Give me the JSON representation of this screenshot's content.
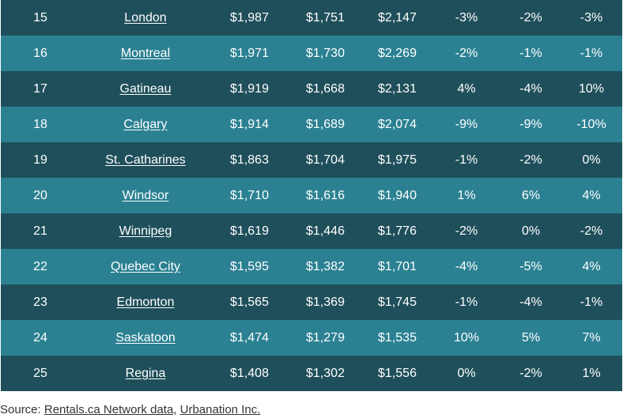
{
  "rows": [
    {
      "rank": "15",
      "city": "London",
      "v1": "$1,987",
      "v2": "$1,751",
      "v3": "$2,147",
      "p1": "-3%",
      "p2": "-2%",
      "p3": "-3%"
    },
    {
      "rank": "16",
      "city": "Montreal",
      "v1": "$1,971",
      "v2": "$1,730",
      "v3": "$2,269",
      "p1": "-2%",
      "p2": "-1%",
      "p3": "-1%"
    },
    {
      "rank": "17",
      "city": "Gatineau",
      "v1": "$1,919",
      "v2": "$1,668",
      "v3": "$2,131",
      "p1": "4%",
      "p2": "-4%",
      "p3": "10%"
    },
    {
      "rank": "18",
      "city": "Calgary",
      "v1": "$1,914",
      "v2": "$1,689",
      "v3": "$2,074",
      "p1": "-9%",
      "p2": "-9%",
      "p3": "-10%"
    },
    {
      "rank": "19",
      "city": "St. Catharines",
      "v1": "$1,863",
      "v2": "$1,704",
      "v3": "$1,975",
      "p1": "-1%",
      "p2": "-2%",
      "p3": "0%"
    },
    {
      "rank": "20",
      "city": "Windsor",
      "v1": "$1,710",
      "v2": "$1,616",
      "v3": "$1,940",
      "p1": "1%",
      "p2": "6%",
      "p3": "4%"
    },
    {
      "rank": "21",
      "city": "Winnipeg",
      "v1": "$1,619",
      "v2": "$1,446",
      "v3": "$1,776",
      "p1": "-2%",
      "p2": "0%",
      "p3": "-2%"
    },
    {
      "rank": "22",
      "city": "Quebec City",
      "v1": "$1,595",
      "v2": "$1,382",
      "v3": "$1,701",
      "p1": "-4%",
      "p2": "-5%",
      "p3": "4%"
    },
    {
      "rank": "23",
      "city": "Edmonton",
      "v1": "$1,565",
      "v2": "$1,369",
      "v3": "$1,745",
      "p1": "-1%",
      "p2": "-4%",
      "p3": "-1%"
    },
    {
      "rank": "24",
      "city": "Saskatoon",
      "v1": "$1,474",
      "v2": "$1,279",
      "v3": "$1,535",
      "p1": "10%",
      "p2": "5%",
      "p3": "7%"
    },
    {
      "rank": "25",
      "city": "Regina",
      "v1": "$1,408",
      "v2": "$1,302",
      "v3": "$1,556",
      "p1": "0%",
      "p2": "-2%",
      "p3": "1%"
    }
  ],
  "source": {
    "prefix": "Source: ",
    "link1": "Rentals.ca Network data",
    "separator": ", ",
    "link2": "Urbanation Inc."
  },
  "colors": {
    "row_dark": "#1f4f5b",
    "row_light": "#2b8192",
    "text": "#ffffff"
  }
}
